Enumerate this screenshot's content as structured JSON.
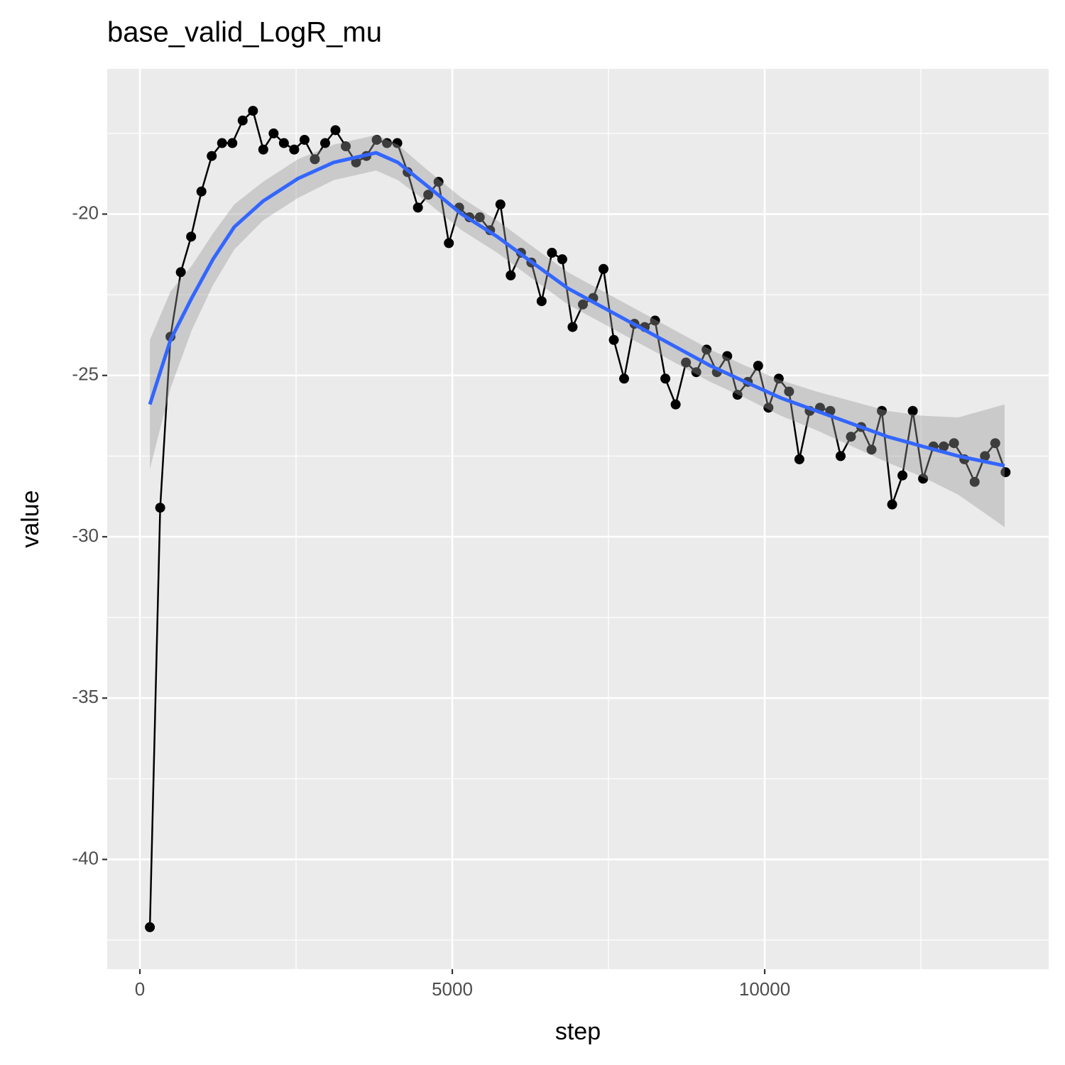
{
  "chart_data": {
    "type": "line",
    "title": "base_valid_LogR_mu",
    "x_label": "step",
    "y_label": "value",
    "xlim": [
      -523,
      14545
    ],
    "ylim": [
      -43.4,
      -15.5
    ],
    "xticks": [
      0,
      5000,
      10000
    ],
    "yticks": [
      -40,
      -35,
      -30,
      -25,
      -20
    ],
    "minor_xticks": [
      2500,
      7500,
      12500
    ],
    "minor_yticks": [
      -42.5,
      -37.5,
      -32.5,
      -27.5,
      -22.5,
      -17.5
    ],
    "grid": true,
    "color": "#000000",
    "x": [
      160,
      325,
      490,
      655,
      820,
      985,
      1150,
      1315,
      1480,
      1645,
      1810,
      1975,
      2140,
      2305,
      2470,
      2635,
      2800,
      2965,
      3130,
      3295,
      3460,
      3625,
      3790,
      3955,
      4120,
      4285,
      4450,
      4615,
      4780,
      4945,
      5110,
      5275,
      5440,
      5605,
      5770,
      5935,
      6100,
      6265,
      6430,
      6595,
      6760,
      6925,
      7090,
      7255,
      7420,
      7585,
      7750,
      7915,
      8080,
      8245,
      8410,
      8575,
      8740,
      8905,
      9070,
      9235,
      9400,
      9565,
      9730,
      9895,
      10060,
      10225,
      10390,
      10555,
      10720,
      10885,
      11050,
      11215,
      11380,
      11545,
      11710,
      11875,
      12040,
      12205,
      12370,
      12535,
      12700,
      12865,
      13030,
      13195,
      13360,
      13525,
      13690,
      13855
    ],
    "values": [
      -42.1,
      -29.1,
      -23.8,
      -21.8,
      -20.7,
      -19.3,
      -18.2,
      -17.8,
      -17.8,
      -17.1,
      -16.8,
      -18.0,
      -17.5,
      -17.8,
      -18.0,
      -17.7,
      -18.3,
      -17.8,
      -17.4,
      -17.9,
      -18.4,
      -18.2,
      -17.7,
      -17.8,
      -17.8,
      -18.7,
      -19.8,
      -19.4,
      -19.0,
      -20.9,
      -19.8,
      -20.1,
      -20.1,
      -20.5,
      -19.7,
      -21.9,
      -21.2,
      -21.5,
      -22.7,
      -21.2,
      -21.4,
      -23.5,
      -22.8,
      -22.6,
      -21.7,
      -23.9,
      -25.1,
      -23.4,
      -23.5,
      -23.3,
      -25.1,
      -25.9,
      -24.6,
      -24.9,
      -24.2,
      -24.9,
      -24.4,
      -25.6,
      -25.2,
      -24.7,
      -26.0,
      -25.1,
      -25.5,
      -27.6,
      -26.1,
      -26.0,
      -26.1,
      -27.5,
      -26.9,
      -26.6,
      -27.3,
      -26.1,
      -29.0,
      -28.1,
      -26.1,
      -28.2,
      -27.2,
      -27.2,
      -27.1,
      -27.6,
      -28.3,
      -27.5,
      -27.1,
      -28.0
    ],
    "smooth": {
      "color": "#3366FF",
      "band_color": "#999999",
      "x": [
        160,
        490,
        830,
        1170,
        1510,
        1970,
        2530,
        3100,
        3780,
        4130,
        4580,
        5150,
        5720,
        6280,
        6850,
        7420,
        7990,
        8560,
        9130,
        9690,
        10260,
        10830,
        11400,
        11970,
        12530,
        13100,
        13840
      ],
      "values": [
        -25.9,
        -23.9,
        -22.6,
        -21.4,
        -20.4,
        -19.6,
        -18.9,
        -18.4,
        -18.1,
        -18.4,
        -19.1,
        -20.0,
        -20.7,
        -21.5,
        -22.3,
        -22.9,
        -23.5,
        -24.1,
        -24.7,
        -25.2,
        -25.7,
        -26.1,
        -26.5,
        -26.9,
        -27.2,
        -27.5,
        -27.8
      ],
      "lower": [
        -27.9,
        -25.4,
        -23.6,
        -22.2,
        -21.1,
        -20.2,
        -19.5,
        -18.95,
        -18.65,
        -18.95,
        -19.6,
        -20.5,
        -21.2,
        -22.0,
        -22.8,
        -23.4,
        -24.0,
        -24.6,
        -25.2,
        -25.7,
        -26.25,
        -26.7,
        -27.2,
        -27.7,
        -28.15,
        -28.7,
        -29.7
      ],
      "upper": [
        -23.9,
        -22.4,
        -21.6,
        -20.6,
        -19.7,
        -19.0,
        -18.3,
        -17.85,
        -17.55,
        -17.85,
        -18.6,
        -19.5,
        -20.2,
        -21.0,
        -21.8,
        -22.4,
        -23.0,
        -23.6,
        -24.2,
        -24.7,
        -25.15,
        -25.5,
        -25.8,
        -26.1,
        -26.25,
        -26.3,
        -25.9
      ]
    }
  }
}
